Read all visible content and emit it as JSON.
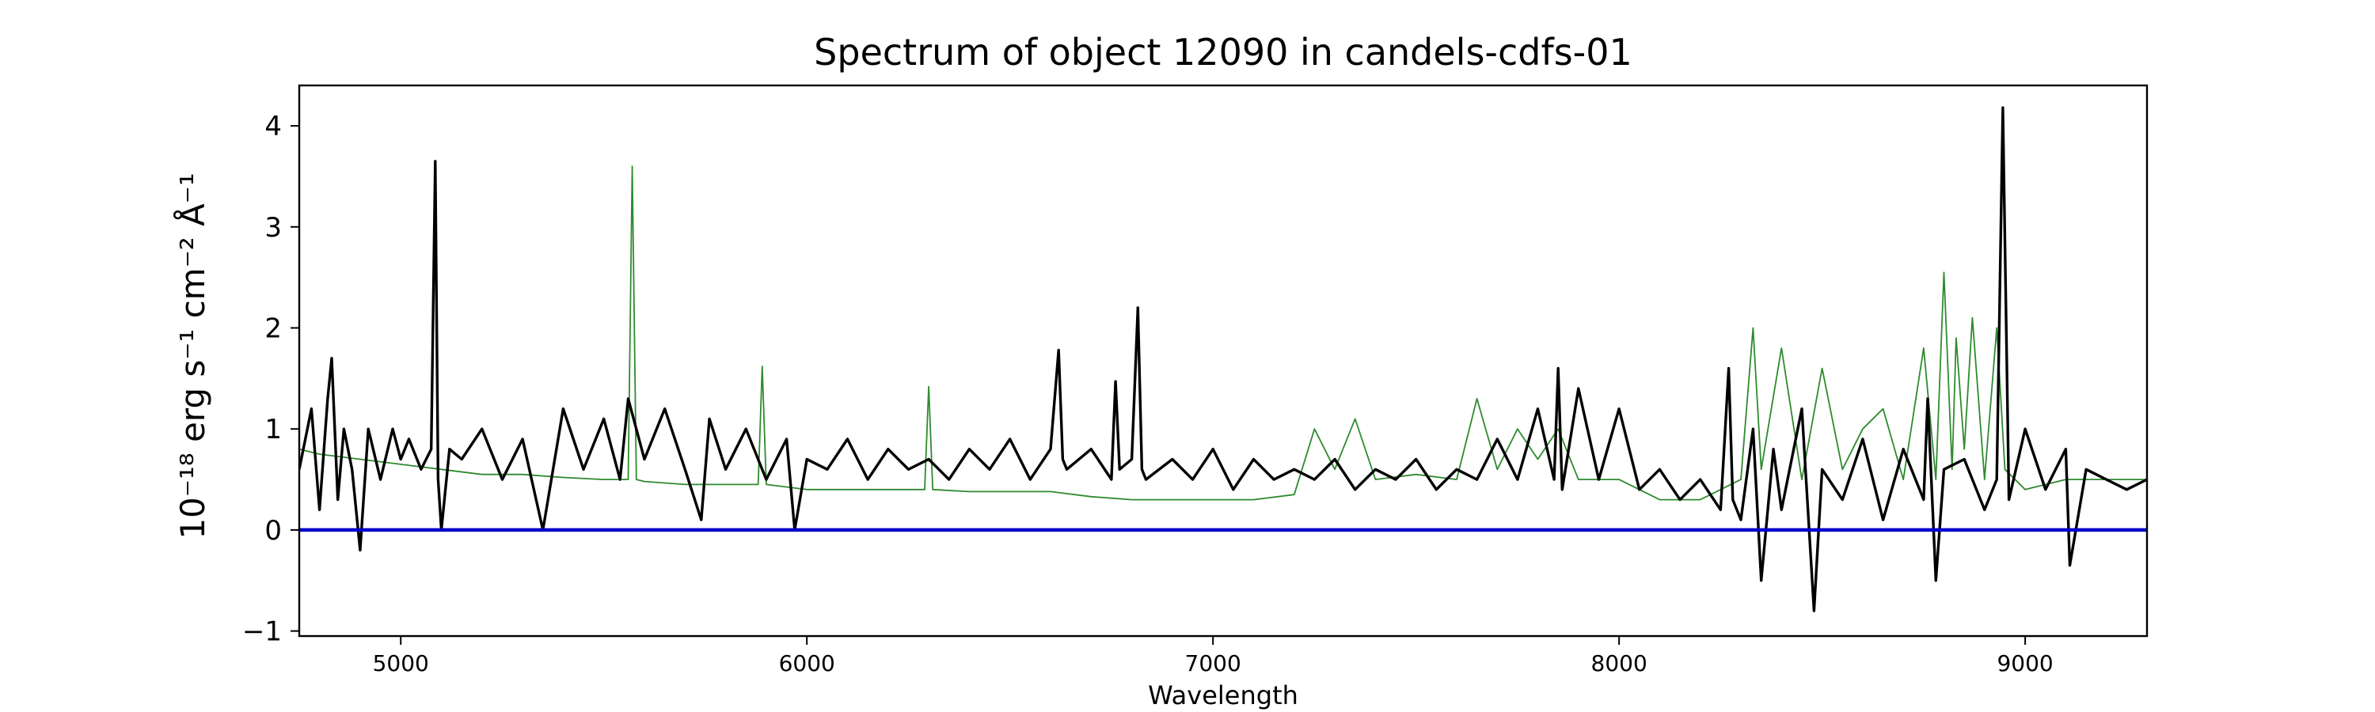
{
  "chart_data": {
    "type": "line",
    "title": "Spectrum of object 12090 in candels-cdfs-01",
    "xlabel": "Wavelength",
    "ylabel": "10⁻¹⁸ erg s⁻¹ cm⁻² Å⁻¹",
    "xlim": [
      4750,
      9300
    ],
    "ylim": [
      -1.05,
      4.4
    ],
    "x_ticks": [
      5000,
      6000,
      7000,
      8000,
      9000
    ],
    "y_ticks": [
      -1,
      0,
      1,
      2,
      3,
      4
    ],
    "y_tick_labels": [
      "−1",
      "0",
      "1",
      "2",
      "3",
      "4"
    ],
    "grid": false,
    "colors": {
      "data": "#000000",
      "model": "#2e8b2e",
      "zero": "#0000cc"
    },
    "series": [
      {
        "style": "data",
        "x": [
          4750,
          4780,
          4800,
          4820,
          4830,
          4845,
          4860,
          4880,
          4900,
          4920,
          4950,
          4980,
          5000,
          5020,
          5050,
          5075,
          5085,
          5092,
          5100,
          5120,
          5150,
          5200,
          5250,
          5300,
          5350,
          5400,
          5450,
          5500,
          5540,
          5560,
          5600,
          5650,
          5700,
          5740,
          5760,
          5800,
          5850,
          5900,
          5950,
          5970,
          6000,
          6050,
          6100,
          6150,
          6200,
          6250,
          6300,
          6350,
          6400,
          6450,
          6500,
          6550,
          6600,
          6620,
          6630,
          6640,
          6700,
          6750,
          6760,
          6770,
          6800,
          6815,
          6825,
          6835,
          6900,
          6950,
          7000,
          7050,
          7100,
          7150,
          7200,
          7250,
          7300,
          7350,
          7400,
          7450,
          7500,
          7550,
          7600,
          7650,
          7700,
          7750,
          7800,
          7840,
          7850,
          7860,
          7900,
          7950,
          8000,
          8050,
          8100,
          8150,
          8200,
          8250,
          8270,
          8280,
          8300,
          8330,
          8350,
          8380,
          8400,
          8450,
          8480,
          8500,
          8550,
          8600,
          8650,
          8700,
          8750,
          8760,
          8780,
          8800,
          8850,
          8900,
          8930,
          8945,
          8960,
          9000,
          9050,
          9100,
          9110,
          9150,
          9200,
          9250,
          9300
        ],
        "y": [
          0.6,
          1.2,
          0.2,
          1.3,
          1.7,
          0.3,
          1.0,
          0.6,
          -0.2,
          1.0,
          0.5,
          1.0,
          0.7,
          0.9,
          0.6,
          0.8,
          3.65,
          0.5,
          0.0,
          0.8,
          0.7,
          1.0,
          0.5,
          0.9,
          0.0,
          1.2,
          0.6,
          1.1,
          0.5,
          1.3,
          0.7,
          1.2,
          0.6,
          0.1,
          1.1,
          0.6,
          1.0,
          0.5,
          0.9,
          0.0,
          0.7,
          0.6,
          0.9,
          0.5,
          0.8,
          0.6,
          0.7,
          0.5,
          0.8,
          0.6,
          0.9,
          0.5,
          0.8,
          1.78,
          0.7,
          0.6,
          0.8,
          0.5,
          1.47,
          0.6,
          0.7,
          2.2,
          0.6,
          0.5,
          0.7,
          0.5,
          0.8,
          0.4,
          0.7,
          0.5,
          0.6,
          0.5,
          0.7,
          0.4,
          0.6,
          0.5,
          0.7,
          0.4,
          0.6,
          0.5,
          0.9,
          0.5,
          1.2,
          0.5,
          1.6,
          0.4,
          1.4,
          0.5,
          1.2,
          0.4,
          0.6,
          0.3,
          0.5,
          0.2,
          1.6,
          0.3,
          0.1,
          1.0,
          -0.5,
          0.8,
          0.2,
          1.2,
          -0.8,
          0.6,
          0.3,
          0.9,
          0.1,
          0.8,
          0.3,
          1.3,
          -0.5,
          0.6,
          0.7,
          0.2,
          0.5,
          4.18,
          0.3,
          1.0,
          0.4,
          0.8,
          -0.35,
          0.6,
          0.5,
          0.4,
          0.5
        ]
      },
      {
        "style": "model",
        "x": [
          4750,
          4800,
          4900,
          5000,
          5100,
          5200,
          5300,
          5400,
          5500,
          5560,
          5570,
          5580,
          5600,
          5700,
          5800,
          5880,
          5890,
          5900,
          6000,
          6100,
          6200,
          6290,
          6300,
          6310,
          6400,
          6500,
          6600,
          6700,
          6800,
          6900,
          7000,
          7100,
          7200,
          7250,
          7300,
          7350,
          7400,
          7500,
          7600,
          7650,
          7700,
          7750,
          7800,
          7850,
          7900,
          8000,
          8100,
          8200,
          8300,
          8330,
          8350,
          8400,
          8450,
          8500,
          8550,
          8600,
          8650,
          8700,
          8750,
          8780,
          8800,
          8820,
          8830,
          8850,
          8870,
          8900,
          8930,
          8950,
          9000,
          9100,
          9200,
          9300
        ],
        "y": [
          0.8,
          0.75,
          0.7,
          0.65,
          0.6,
          0.55,
          0.55,
          0.52,
          0.5,
          0.5,
          3.6,
          0.5,
          0.48,
          0.45,
          0.45,
          0.45,
          1.62,
          0.45,
          0.4,
          0.4,
          0.4,
          0.4,
          1.42,
          0.4,
          0.38,
          0.38,
          0.38,
          0.33,
          0.3,
          0.3,
          0.3,
          0.3,
          0.35,
          1.0,
          0.6,
          1.1,
          0.5,
          0.55,
          0.5,
          1.3,
          0.6,
          1.0,
          0.7,
          1.0,
          0.5,
          0.5,
          0.3,
          0.3,
          0.5,
          2.0,
          0.6,
          1.8,
          0.5,
          1.6,
          0.6,
          1.0,
          1.2,
          0.5,
          1.8,
          0.5,
          2.55,
          0.6,
          1.9,
          0.8,
          2.1,
          0.5,
          2.0,
          0.6,
          0.4,
          0.5,
          0.5,
          0.5
        ]
      },
      {
        "style": "zero",
        "x": [
          4750,
          9300
        ],
        "y": [
          0,
          0
        ]
      }
    ]
  }
}
